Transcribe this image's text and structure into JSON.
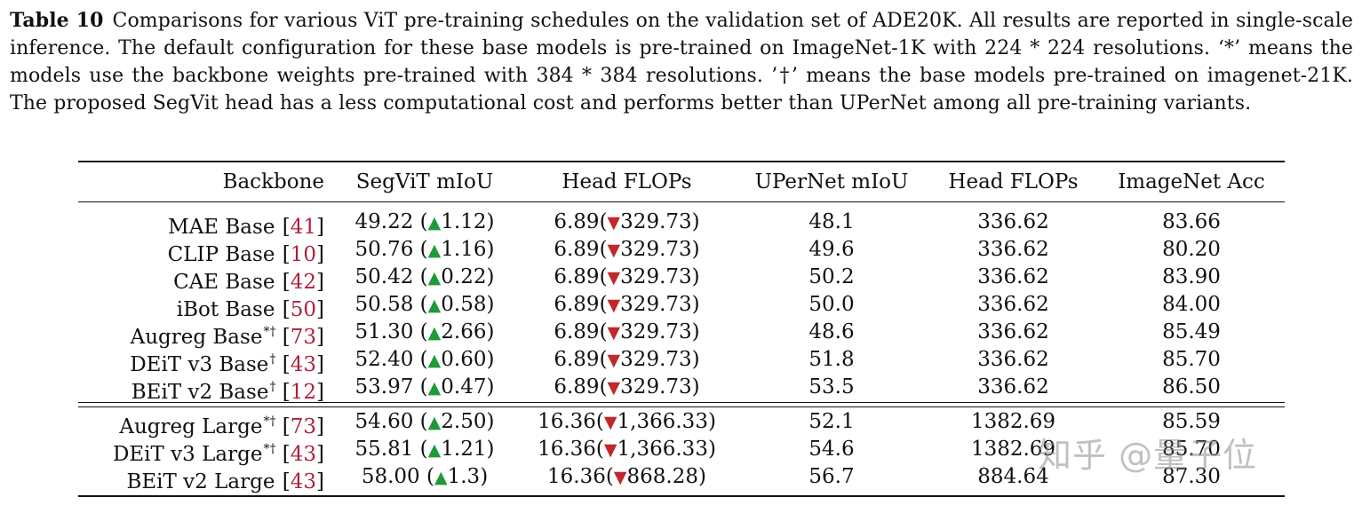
{
  "caption": {
    "label": "Table 10",
    "text": "Comparisons for various ViT pre-training schedules on the validation set of ADE20K. All results are reported in single-scale inference. The default configuration for these base models is pre-trained on ImageNet-1K with 224 * 224 resolutions. ‘*’ means the models use the backbone weights pre-trained with 384 * 384 resolutions. ’†’ means the base models pre-trained on imagenet-21K. The proposed SegVit head has a less computational cost and performs better than UPerNet among all pre-training variants."
  },
  "table": {
    "headers": [
      "Backbone",
      "SegViT mIoU",
      "Head FLOPs",
      "UPerNet mIoU",
      "Head FLOPs",
      "ImageNet Acc"
    ],
    "base_rows": [
      {
        "name": "MAE Base",
        "sup": "",
        "ref": "41",
        "segvit": "49.22",
        "delta": "1.12",
        "flops": "6.89",
        "flops_delta": "329.73",
        "upernet": "48.1",
        "upernet_flops": "336.62",
        "acc": "83.66"
      },
      {
        "name": "CLIP Base",
        "sup": "",
        "ref": "10",
        "segvit": "50.76",
        "delta": "1.16",
        "flops": "6.89",
        "flops_delta": "329.73",
        "upernet": "49.6",
        "upernet_flops": "336.62",
        "acc": "80.20"
      },
      {
        "name": "CAE Base",
        "sup": "",
        "ref": "42",
        "segvit": "50.42",
        "delta": "0.22",
        "flops": "6.89",
        "flops_delta": "329.73",
        "upernet": "50.2",
        "upernet_flops": "336.62",
        "acc": "83.90"
      },
      {
        "name": "iBot Base",
        "sup": "",
        "ref": "50",
        "segvit": "50.58",
        "delta": "0.58",
        "flops": "6.89",
        "flops_delta": "329.73",
        "upernet": "50.0",
        "upernet_flops": "336.62",
        "acc": "84.00"
      },
      {
        "name": "Augreg Base",
        "sup": "*†",
        "ref": "73",
        "segvit": "51.30",
        "delta": "2.66",
        "flops": "6.89",
        "flops_delta": "329.73",
        "upernet": "48.6",
        "upernet_flops": "336.62",
        "acc": "85.49"
      },
      {
        "name": "DEiT v3 Base",
        "sup": "†",
        "ref": "43",
        "segvit": "52.40",
        "delta": "0.60",
        "flops": "6.89",
        "flops_delta": "329.73",
        "upernet": "51.8",
        "upernet_flops": "336.62",
        "acc": "85.70"
      },
      {
        "name": "BEiT v2 Base",
        "sup": "†",
        "ref": "12",
        "segvit": "53.97",
        "delta": "0.47",
        "flops": "6.89",
        "flops_delta": "329.73",
        "upernet": "53.5",
        "upernet_flops": "336.62",
        "acc": "86.50"
      }
    ],
    "large_rows": [
      {
        "name": "Augreg Large",
        "sup": "*†",
        "ref": "73",
        "segvit": "54.60",
        "delta": "2.50",
        "flops": "16.36",
        "flops_delta": "1,366.33",
        "upernet": "52.1",
        "upernet_flops": "1382.69",
        "acc": "85.59"
      },
      {
        "name": "DEiT v3 Large",
        "sup": "*†",
        "ref": "43",
        "segvit": "55.81",
        "delta": "1.21",
        "flops": "16.36",
        "flops_delta": "1,366.33",
        "upernet": "54.6",
        "upernet_flops": "1382.69",
        "acc": "85.70"
      },
      {
        "name": "BEiT v2 Large",
        "sup": "",
        "ref": "43",
        "segvit": "58.00",
        "delta": "1.3",
        "flops": "16.36",
        "flops_delta": "868.28",
        "upernet": "56.7",
        "upernet_flops": "884.64",
        "acc": "87.30"
      }
    ]
  },
  "watermark": "知乎 @量子位"
}
